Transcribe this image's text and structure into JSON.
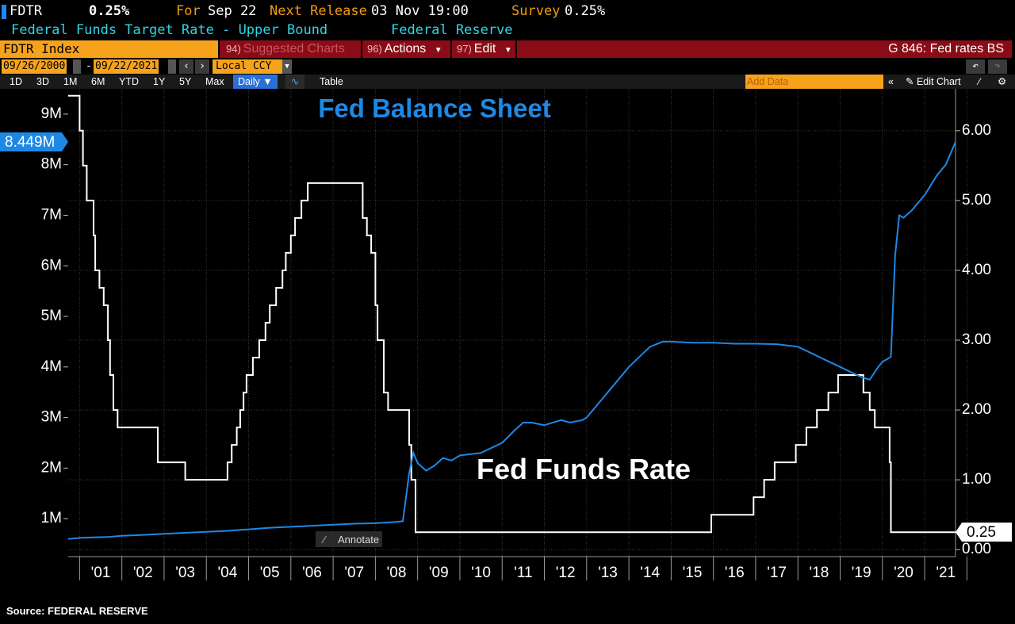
{
  "header": {
    "ticker": "FDTR",
    "last_value": "0.25%",
    "for_label": "For",
    "for_date": "Sep 22",
    "next_release_label": "Next Release",
    "next_release_value": "03 Nov 19:00",
    "survey_label": "Survey",
    "survey_value": "0.25%",
    "description": "Federal Funds Target Rate - Upper Bound",
    "source_name": "Federal Reserve"
  },
  "menubar": {
    "ticker_field": "FDTR Index",
    "suggested_num": "94)",
    "suggested_label": "Suggested Charts",
    "actions_num": "96)",
    "actions_label": "Actions",
    "edit_num": "97)",
    "edit_label": "Edit",
    "chart_id": "G 846: Fed rates BS"
  },
  "dates": {
    "start": "09/26/2000",
    "end": "09/22/2021",
    "currency": "Local CCY"
  },
  "toolbar": {
    "ranges": [
      "1D",
      "3D",
      "1M",
      "6M",
      "YTD",
      "1Y",
      "5Y",
      "Max"
    ],
    "frequency": "Daily",
    "table_label": "Table",
    "add_data_placeholder": "Add Data",
    "edit_chart_label": "Edit Chart"
  },
  "colors": {
    "balance_sheet": "#1e88e5",
    "funds_rate": "#ffffff",
    "title_blue": "#1e88e5",
    "accent_orange": "#f7a21b",
    "menu_red": "#8a0c17"
  },
  "chart_data": {
    "type": "line",
    "title": "Fed Balance Sheet",
    "annotation": "Fed Funds Rate",
    "source": "Source: FEDERAL RESERVE",
    "annotate_button": "Annotate",
    "xlabel": "",
    "x_ticks": [
      "'01",
      "'02",
      "'03",
      "'04",
      "'05",
      "'06",
      "'07",
      "'08",
      "'09",
      "'10",
      "'11",
      "'12",
      "'13",
      "'14",
      "'15",
      "'16",
      "'17",
      "'18",
      "'19",
      "'20",
      "'21"
    ],
    "x_range": [
      2000.73,
      2021.73
    ],
    "left_axis": {
      "ticks": [
        "1M",
        "2M",
        "3M",
        "4M",
        "5M",
        "6M",
        "7M",
        "8M",
        "9M"
      ],
      "tick_values": [
        1,
        2,
        3,
        4,
        5,
        6,
        7,
        8,
        9
      ],
      "range": [
        0.25,
        9.5
      ],
      "last_value_label": "8.449M",
      "last_value": 8.449
    },
    "right_axis": {
      "ticks": [
        "0.00",
        "1.00",
        "2.00",
        "3.00",
        "4.00",
        "5.00",
        "6.00"
      ],
      "tick_values": [
        0,
        1,
        2,
        3,
        4,
        5,
        6
      ],
      "range": [
        -0.1,
        6.6
      ],
      "last_value_label": "0.25",
      "last_value": 0.25
    },
    "grid": true,
    "series": [
      {
        "axis": "left",
        "x": [
          2000.73,
          2001.0,
          2001.7,
          2002.0,
          2002.5,
          2003.0,
          2003.5,
          2004.0,
          2004.5,
          2005.0,
          2005.5,
          2006.0,
          2006.5,
          2007.0,
          2007.5,
          2008.0,
          2008.4,
          2008.65,
          2008.72,
          2008.8,
          2008.9,
          2009.0,
          2009.2,
          2009.4,
          2009.6,
          2009.8,
          2010.0,
          2010.5,
          2011.0,
          2011.3,
          2011.5,
          2011.7,
          2012.0,
          2012.4,
          2012.6,
          2012.9,
          2013.0,
          2013.5,
          2014.0,
          2014.5,
          2014.8,
          2015.0,
          2015.5,
          2016.0,
          2016.5,
          2017.0,
          2017.5,
          2018.0,
          2018.5,
          2019.0,
          2019.5,
          2019.7,
          2019.9,
          2020.0,
          2020.2,
          2020.3,
          2020.4,
          2020.5,
          2020.7,
          2021.0,
          2021.3,
          2021.5,
          2021.73
        ],
        "y": [
          0.6,
          0.62,
          0.64,
          0.66,
          0.68,
          0.7,
          0.72,
          0.74,
          0.76,
          0.79,
          0.82,
          0.84,
          0.86,
          0.88,
          0.9,
          0.91,
          0.93,
          0.95,
          1.4,
          1.9,
          2.3,
          2.1,
          1.95,
          2.05,
          2.2,
          2.15,
          2.25,
          2.3,
          2.5,
          2.75,
          2.9,
          2.9,
          2.85,
          2.95,
          2.9,
          2.95,
          3.0,
          3.5,
          4.0,
          4.4,
          4.5,
          4.5,
          4.48,
          4.48,
          4.46,
          4.46,
          4.45,
          4.4,
          4.2,
          4.0,
          3.8,
          3.75,
          4.0,
          4.1,
          4.2,
          6.2,
          7.0,
          6.95,
          7.1,
          7.4,
          7.8,
          8.0,
          8.449
        ]
      },
      {
        "axis": "right",
        "x": [
          2000.73,
          2001.0,
          2001.08,
          2001.17,
          2001.33,
          2001.37,
          2001.47,
          2001.57,
          2001.67,
          2001.72,
          2001.8,
          2001.9,
          2001.95,
          2002.85,
          2003.5,
          2004.5,
          2004.6,
          2004.72,
          2004.8,
          2004.88,
          2004.95,
          2005.1,
          2005.25,
          2005.4,
          2005.5,
          2005.65,
          2005.8,
          2005.88,
          2006.0,
          2006.1,
          2006.25,
          2006.4,
          2006.5,
          2007.7,
          2007.8,
          2007.9,
          2008.0,
          2008.05,
          2008.2,
          2008.3,
          2008.8,
          2008.85,
          2008.95,
          2015.95,
          2016.95,
          2017.2,
          2017.45,
          2017.95,
          2018.2,
          2018.45,
          2018.72,
          2018.95,
          2019.55,
          2019.7,
          2019.82,
          2020.17,
          2020.2,
          2021.73
        ],
        "y": [
          6.5,
          6.0,
          5.5,
          5.0,
          4.5,
          4.0,
          3.75,
          3.5,
          3.0,
          2.5,
          2.0,
          1.75,
          1.75,
          1.25,
          1.0,
          1.25,
          1.5,
          1.75,
          2.0,
          2.25,
          2.5,
          2.75,
          3.0,
          3.25,
          3.5,
          3.75,
          4.0,
          4.25,
          4.5,
          4.75,
          5.0,
          5.25,
          5.25,
          4.75,
          4.5,
          4.25,
          3.5,
          3.0,
          2.25,
          2.0,
          1.5,
          1.0,
          0.25,
          0.5,
          0.75,
          1.0,
          1.25,
          1.5,
          1.75,
          2.0,
          2.25,
          2.5,
          2.25,
          2.0,
          1.75,
          1.25,
          0.25,
          0.25
        ]
      }
    ]
  }
}
